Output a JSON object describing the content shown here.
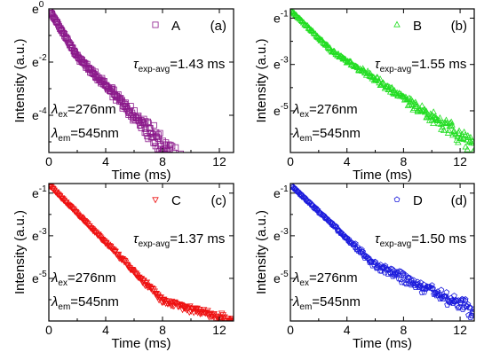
{
  "chart_data": [
    {
      "type": "scatter",
      "panel": "(a)",
      "series": [
        {
          "name": "A",
          "marker": "square",
          "color": "#8b1a8b"
        }
      ],
      "xlabel": "Time (ms)",
      "ylabel": "Intensity (a.u.)",
      "xlim": [
        0,
        13
      ],
      "xticks": [
        0,
        4,
        8,
        12
      ],
      "yscale": "ln",
      "ylim_ln": [
        -5.4,
        0
      ],
      "yticks_ln": [
        0,
        -2,
        -4
      ],
      "ytick_labels": [
        "e",
        "e",
        "e"
      ],
      "ytick_exponents": [
        "0",
        "-2",
        "-4"
      ],
      "tau_avg_ms": 1.43,
      "tau_value_text": "=1.43 ms",
      "data_x_range_ms": [
        0,
        10
      ],
      "decay_ln": {
        "start": 0,
        "early_rate_per_ms": 0.9,
        "late_rate_per_ms": 0.55,
        "knee_ms": 2,
        "noise_grows_to": 0.65
      },
      "lambda_ex_text": "=276nm",
      "lambda_em_text": "=545nm",
      "grid": false,
      "legend_position": "top-right"
    },
    {
      "type": "scatter",
      "panel": "(b)",
      "series": [
        {
          "name": "B",
          "marker": "triangle-up",
          "color": "#22dd22"
        }
      ],
      "xlabel": "Time (ms)",
      "ylabel": "Intensity (a.u.)",
      "xlim": [
        0,
        13
      ],
      "xticks": [
        0,
        4,
        8,
        12
      ],
      "yscale": "ln",
      "ylim_ln": [
        -6.8,
        -0.6
      ],
      "yticks_ln": [
        -1,
        -3,
        -5
      ],
      "ytick_labels": [
        "e",
        "e",
        "e"
      ],
      "ytick_exponents": [
        "-1",
        "-3",
        "-5"
      ],
      "tau_avg_ms": 1.55,
      "tau_value_text": "=1.55 ms",
      "data_x_range_ms": [
        0,
        13
      ],
      "decay_ln": {
        "start": -0.65,
        "early_rate_per_ms": 0.6,
        "late_rate_per_ms": 0.4,
        "knee_ms": 3,
        "noise_grows_to": 0.45
      },
      "lambda_ex_text": "=276nm",
      "lambda_em_text": "=545nm",
      "grid": false,
      "legend_position": "top-right"
    },
    {
      "type": "scatter",
      "panel": "(c)",
      "series": [
        {
          "name": "C",
          "marker": "triangle-down",
          "color": "#ee1111"
        }
      ],
      "xlabel": "Time (ms)",
      "ylabel": "Intensity (a.u.)",
      "xlim": [
        0,
        13
      ],
      "xticks": [
        0,
        4,
        8,
        12
      ],
      "yscale": "ln",
      "ylim_ln": [
        -7.0,
        -0.55
      ],
      "yticks_ln": [
        -1,
        -3,
        -5
      ],
      "ytick_labels": [
        "e",
        "e",
        "e"
      ],
      "ytick_exponents": [
        "-1",
        "-3",
        "-5"
      ],
      "tau_avg_ms": 1.37,
      "tau_value_text": "=1.37 ms",
      "data_x_range_ms": [
        0,
        13
      ],
      "decay_ln": {
        "start": -0.6,
        "early_rate_per_ms": 0.68,
        "late_rate_per_ms": 0.2,
        "knee_ms": 8,
        "noise_grows_to": 0.3
      },
      "lambda_ex_text": "=276nm",
      "lambda_em_text": "=545nm",
      "grid": false,
      "legend_position": "top-right"
    },
    {
      "type": "scatter",
      "panel": "(d)",
      "series": [
        {
          "name": "D",
          "marker": "pentagon",
          "color": "#1a1adc"
        }
      ],
      "xlabel": "Time (ms)",
      "ylabel": "Intensity (a.u.)",
      "xlim": [
        0,
        13
      ],
      "xticks": [
        0,
        4,
        8,
        12
      ],
      "yscale": "ln",
      "ylim_ln": [
        -7.0,
        -0.55
      ],
      "yticks_ln": [
        -1,
        -3,
        -5
      ],
      "ytick_labels": [
        "e",
        "e",
        "e"
      ],
      "ytick_exponents": [
        "-1",
        "-3",
        "-5"
      ],
      "tau_avg_ms": 1.5,
      "tau_value_text": "=1.50 ms",
      "data_x_range_ms": [
        0,
        13
      ],
      "decay_ln": {
        "start": -0.6,
        "early_rate_per_ms": 0.63,
        "late_rate_per_ms": 0.3,
        "knee_ms": 6,
        "noise_grows_to": 0.55
      },
      "lambda_ex_text": "=276nm",
      "lambda_em_text": "=545nm",
      "grid": false,
      "legend_position": "top-right"
    }
  ],
  "labels": {
    "tau_symbol": "τ",
    "tau_subscript": "exp-avg",
    "lambda_symbol": "λ",
    "ex_subscript": "ex",
    "em_subscript": "em"
  }
}
